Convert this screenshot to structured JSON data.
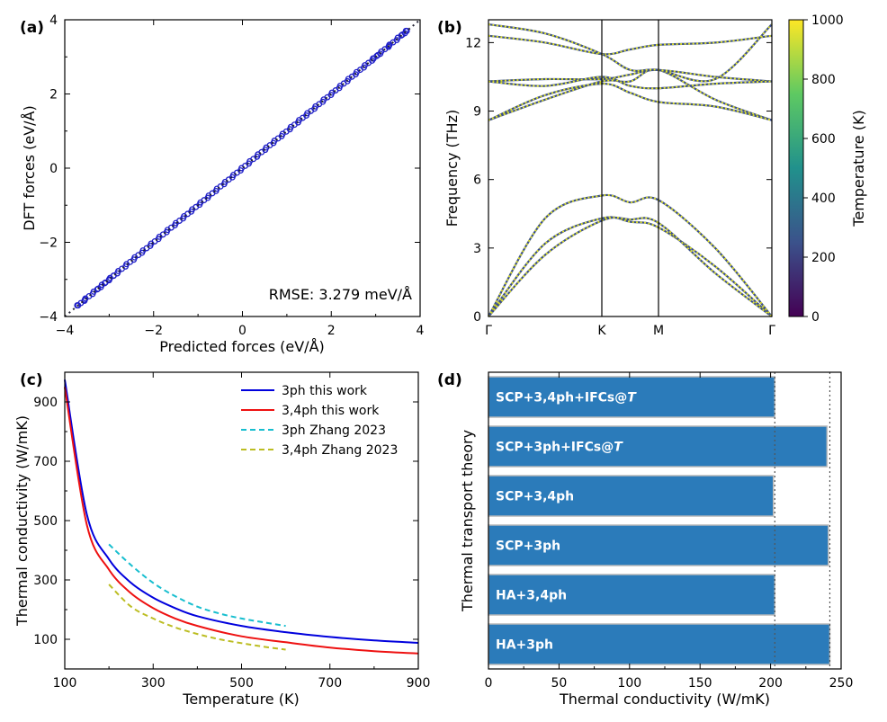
{
  "panels": {
    "a": "(a)",
    "b": "(b)",
    "c": "(c)",
    "d": "(d)"
  },
  "chart_data": [
    {
      "id": "a",
      "type": "scatter",
      "xlabel": "Predicted forces (eV/Å)",
      "ylabel": "DFT forces (eV/Å)",
      "xlim": [
        -4,
        4
      ],
      "ylim": [
        -4,
        4
      ],
      "xticks": [
        -4,
        -2,
        0,
        2,
        4
      ],
      "yticks": [
        -4,
        -2,
        0,
        2,
        4
      ],
      "xtick_labels": [
        "−4",
        "−2",
        "0",
        "2",
        "4"
      ],
      "ytick_labels": [
        "−4",
        "−2",
        "0",
        "2",
        "4"
      ],
      "annotation": "RMSE: 3.279 meV/Å",
      "reference_line": [
        [
          -4,
          -4
        ],
        [
          4,
          4
        ]
      ],
      "points_range": [
        -3.7,
        3.7
      ],
      "sparse_points": [
        -3.7,
        -3.55,
        -3.25,
        -3.1,
        -3.0,
        -2.9,
        2.95,
        3.05,
        3.3,
        3.6,
        3.7
      ],
      "colors": {
        "points": "#1f1fc8",
        "line": "#222233"
      }
    },
    {
      "id": "b",
      "type": "line",
      "ylabel": "Frequency (THz)",
      "xtick_labels": [
        "Γ",
        "K",
        "M",
        "Γ"
      ],
      "ylim": [
        0,
        13
      ],
      "yticks": [
        0,
        3,
        6,
        9,
        12
      ],
      "ytick_labels": [
        "0",
        "3",
        "6",
        "9",
        "12"
      ],
      "colorbar": {
        "label": "Temperature (K)",
        "range": [
          0,
          1000
        ],
        "ticks": [
          0,
          200,
          400,
          600,
          800,
          1000
        ],
        "colors": [
          "#440154",
          "#3b528b",
          "#21918c",
          "#5ec962",
          "#fde725"
        ]
      },
      "path_nodes": [
        0,
        1,
        1.5,
        2.5
      ],
      "branches": [
        {
          "points": [
            [
              0,
              0
            ],
            [
              0.5,
              3.2
            ],
            [
              1,
              4.3
            ],
            [
              1.25,
              4.15
            ],
            [
              1.5,
              3.9
            ],
            [
              2,
              2.2
            ],
            [
              2.5,
              0
            ]
          ]
        },
        {
          "points": [
            [
              0,
              0
            ],
            [
              0.5,
              2.7
            ],
            [
              1,
              4.2
            ],
            [
              1.25,
              4.25
            ],
            [
              1.5,
              4.1
            ],
            [
              2,
              1.9
            ],
            [
              2.5,
              0
            ]
          ]
        },
        {
          "points": [
            [
              0,
              0
            ],
            [
              0.5,
              4.3
            ],
            [
              1,
              5.3
            ],
            [
              1.25,
              5.0
            ],
            [
              1.5,
              5.1
            ],
            [
              2,
              3.0
            ],
            [
              2.5,
              0
            ]
          ]
        },
        {
          "points": [
            [
              0,
              8.6
            ],
            [
              0.5,
              9.5
            ],
            [
              1,
              10.3
            ],
            [
              1.25,
              10.3
            ],
            [
              1.5,
              10.8
            ],
            [
              2,
              9.5
            ],
            [
              2.5,
              8.6
            ]
          ]
        },
        {
          "points": [
            [
              0,
              8.6
            ],
            [
              0.5,
              9.7
            ],
            [
              1,
              10.2
            ],
            [
              1.25,
              9.8
            ],
            [
              1.5,
              9.4
            ],
            [
              2,
              9.2
            ],
            [
              2.5,
              8.6
            ]
          ]
        },
        {
          "points": [
            [
              0,
              10.3
            ],
            [
              0.5,
              10.4
            ],
            [
              1,
              10.4
            ],
            [
              1.25,
              10.6
            ],
            [
              1.5,
              10.8
            ],
            [
              2,
              10.5
            ],
            [
              2.5,
              10.3
            ]
          ]
        },
        {
          "points": [
            [
              0,
              10.3
            ],
            [
              0.5,
              10.1
            ],
            [
              1,
              10.5
            ],
            [
              1.25,
              10.1
            ],
            [
              1.5,
              10.0
            ],
            [
              2,
              10.2
            ],
            [
              2.5,
              10.3
            ]
          ]
        },
        {
          "points": [
            [
              0,
              12.3
            ],
            [
              0.5,
              12.0
            ],
            [
              1,
              11.5
            ],
            [
              1.25,
              11.7
            ],
            [
              1.5,
              11.9
            ],
            [
              2,
              12.0
            ],
            [
              2.5,
              12.3
            ]
          ]
        },
        {
          "points": [
            [
              0,
              12.8
            ],
            [
              0.5,
              12.4
            ],
            [
              1,
              11.5
            ],
            [
              1.25,
              10.8
            ],
            [
              1.5,
              10.8
            ],
            [
              2,
              10.4
            ],
            [
              2.5,
              12.8
            ]
          ]
        }
      ]
    },
    {
      "id": "c",
      "type": "line",
      "xlabel": "Temperature (K)",
      "ylabel": "Thermal conductivity (W/mK)",
      "xlim": [
        100,
        900
      ],
      "ylim": [
        0,
        1000
      ],
      "xticks": [
        100,
        300,
        500,
        700,
        900
      ],
      "yticks": [
        100,
        300,
        500,
        700,
        900
      ],
      "legend_placement": "top-right",
      "series": [
        {
          "name": "3ph this work",
          "color": "#0000dd",
          "dash": "",
          "x": [
            100,
            150,
            200,
            250,
            300,
            350,
            400,
            500,
            600,
            700,
            800,
            900
          ],
          "y": [
            975,
            520,
            370,
            290,
            240,
            205,
            178,
            145,
            124,
            108,
            96,
            88
          ]
        },
        {
          "name": "3,4ph this work",
          "color": "#ee1111",
          "dash": "",
          "x": [
            100,
            150,
            200,
            250,
            300,
            350,
            400,
            500,
            600,
            700,
            800,
            900
          ],
          "y": [
            950,
            485,
            335,
            255,
            205,
            170,
            145,
            110,
            90,
            72,
            60,
            52
          ]
        },
        {
          "name": "3ph Zhang 2023",
          "color": "#17becf",
          "dash": "6,4",
          "x": [
            200,
            250,
            300,
            350,
            400,
            450,
            500,
            550,
            600
          ],
          "y": [
            420,
            350,
            290,
            245,
            210,
            187,
            170,
            157,
            145
          ]
        },
        {
          "name": "3,4ph Zhang 2023",
          "color": "#bcbd22",
          "dash": "6,4",
          "x": [
            200,
            250,
            300,
            350,
            400,
            450,
            500,
            550,
            600
          ],
          "y": [
            285,
            210,
            170,
            140,
            118,
            100,
            87,
            75,
            65
          ]
        }
      ]
    },
    {
      "id": "d",
      "type": "bar",
      "orientation": "horizontal",
      "xlabel": "Thermal conductivity (W/mK)",
      "ylabel": "Thermal transport theory",
      "xlim": [
        0,
        250
      ],
      "xticks": [
        0,
        50,
        100,
        150,
        200,
        250
      ],
      "categories": [
        "SCP+3,4ph+IFCs@T",
        "SCP+3ph+IFCs@T",
        "SCP+3,4ph",
        "SCP+3ph",
        "HA+3,4ph",
        "HA+3ph"
      ],
      "category_labels": [
        {
          "text": "SCP+3,4ph+IFCs@",
          "italic": "T"
        },
        {
          "text": "SCP+3ph+IFCs@",
          "italic": "T"
        },
        {
          "text": "SCP+3,4ph",
          "italic": ""
        },
        {
          "text": "SCP+3ph",
          "italic": ""
        },
        {
          "text": "HA+3,4ph",
          "italic": ""
        },
        {
          "text": "HA+3ph",
          "italic": ""
        }
      ],
      "values": [
        203,
        240,
        202,
        241,
        203,
        242
      ],
      "reference_lines": [
        203,
        242
      ],
      "colors": {
        "bar": "#2b7bba",
        "edge": "#bcbcbc"
      }
    }
  ]
}
